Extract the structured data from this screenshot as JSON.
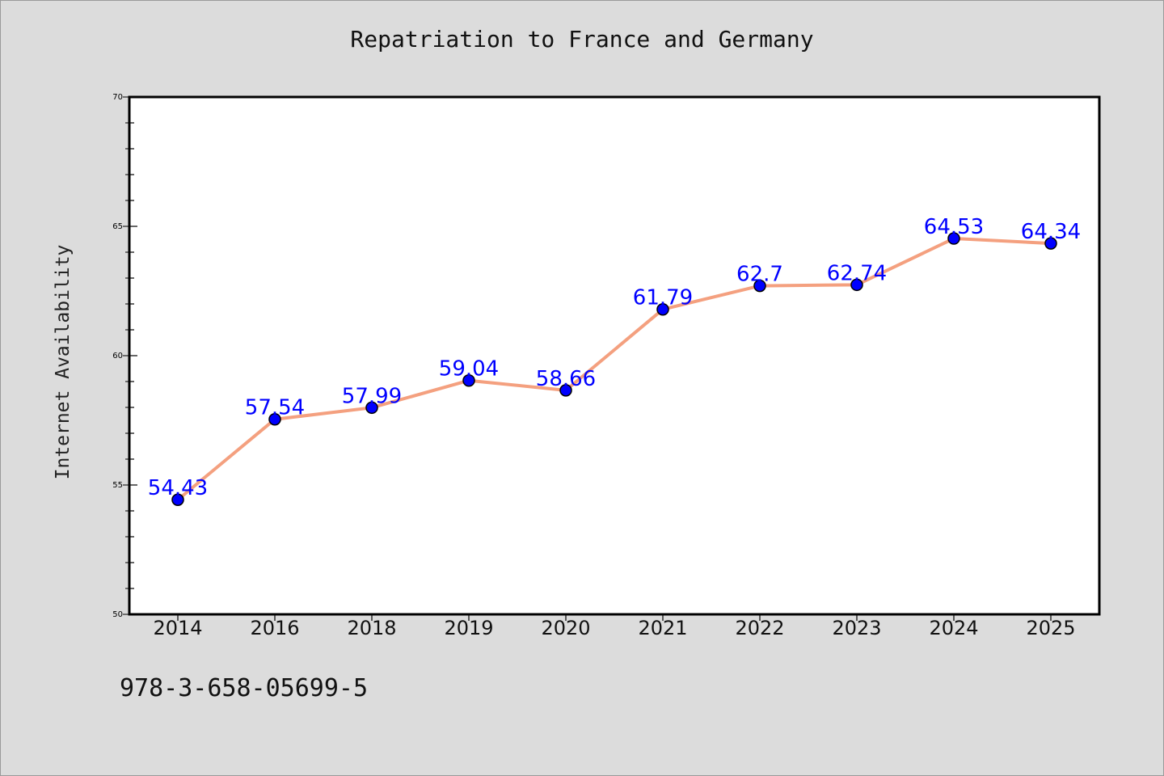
{
  "chart_data": {
    "type": "line",
    "title": "Repatriation to France and Germany",
    "xlabel": "",
    "ylabel": "Internet Availability",
    "categories": [
      "2014",
      "2016",
      "2018",
      "2019",
      "2020",
      "2021",
      "2022",
      "2023",
      "2024",
      "2025"
    ],
    "series": [
      {
        "values": [
          54.43,
          57.54,
          57.99,
          59.04,
          58.66,
          61.79,
          62.7,
          62.74,
          64.53,
          64.34
        ],
        "labels": [
          "54.43",
          "57.54",
          "57.99",
          "59.04",
          "58.66",
          "61.79",
          "62.7",
          "62.74",
          "64.53",
          "64.34"
        ],
        "line_color": "#f4a07f",
        "marker_color": "#0000ff"
      }
    ],
    "ylim": [
      50,
      70
    ],
    "y_ticks": [
      "50",
      "55",
      "60",
      "65",
      "70"
    ],
    "grid": false,
    "label_color": "#0000ff"
  },
  "footer": {
    "code": "978-3-658-05699-5"
  }
}
